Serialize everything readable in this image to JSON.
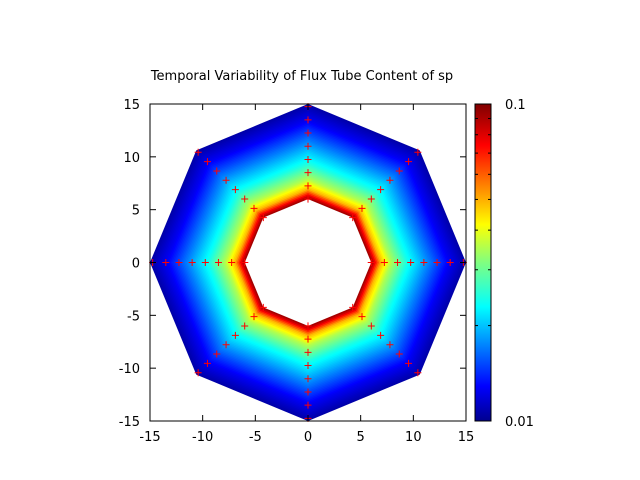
{
  "chart_data": {
    "type": "heatmap",
    "title": "Temporal Variability of Flux Tube Content of sp",
    "xlabel": "",
    "ylabel": "",
    "xlim": [
      -15,
      15
    ],
    "ylim": [
      -15,
      15
    ],
    "x_ticks": [
      "-15",
      "-10",
      "-5",
      "0",
      "5",
      "10",
      "15"
    ],
    "y_ticks": [
      "15",
      "10",
      "5",
      "0",
      "-5",
      "-10",
      "-15"
    ],
    "colorbar": {
      "scale": "log",
      "min": 0.01,
      "max": 0.1,
      "labels": [
        "0.1",
        "0.01"
      ],
      "colormap": "jet"
    },
    "grid": false,
    "domain": {
      "shape": "octagonal annulus",
      "outer_radius": 15,
      "inner_radius": 6,
      "orientation": "vertex at 0, 45, 90, 135, 180, 225, 270, 315 degrees"
    },
    "radial_profile": {
      "r": [
        6.0,
        6.4,
        7.0,
        8.0,
        9.5,
        11.5,
        13.5,
        15.0
      ],
      "value": [
        0.1,
        0.08,
        0.05,
        0.035,
        0.025,
        0.018,
        0.013,
        0.011
      ]
    },
    "marker_series": {
      "marker": "+",
      "color": "#ff0000",
      "angles_deg": [
        0,
        45,
        90,
        135,
        180,
        225,
        270,
        315
      ],
      "radii": [
        6.0,
        7.25,
        8.5,
        9.75,
        11.0,
        12.25,
        13.5,
        14.75
      ]
    }
  }
}
